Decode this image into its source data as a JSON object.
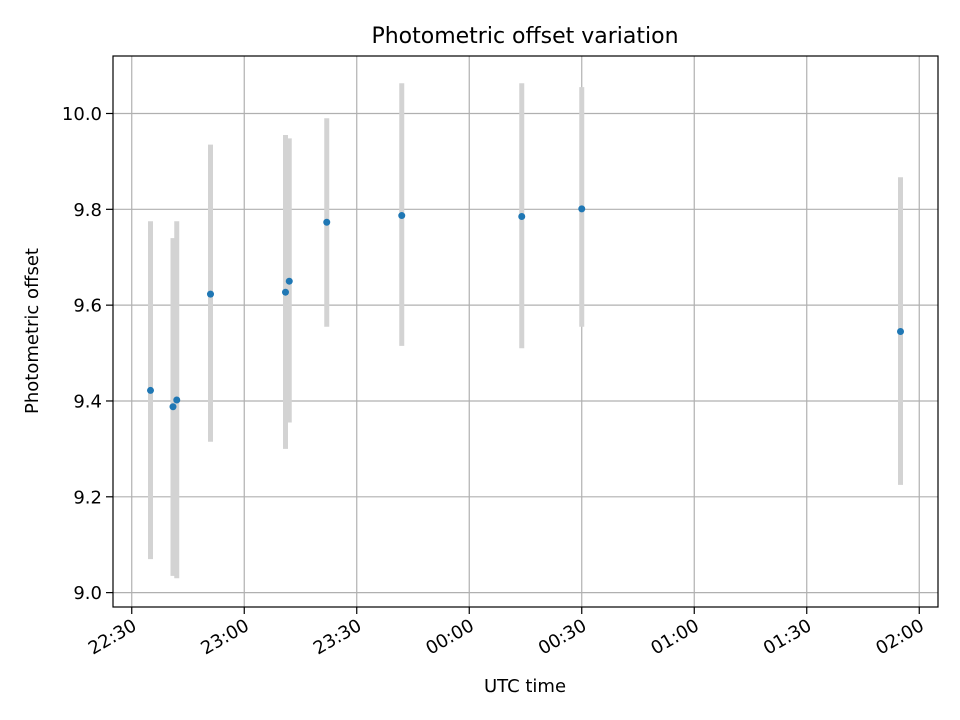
{
  "chart_data": {
    "type": "scatter",
    "title": "Photometric offset variation",
    "xlabel": "UTC time",
    "ylabel": "Photometric offset",
    "xlim": [
      "2000-01-01T22:25",
      "2000-01-02T02:05"
    ],
    "ylim": [
      8.97,
      10.12
    ],
    "x_ticks": [
      "22:30",
      "23:00",
      "23:30",
      "00:00",
      "00:30",
      "01:00",
      "01:30",
      "02:00"
    ],
    "x_tick_times": [
      "2000-01-01T22:30",
      "2000-01-01T23:00",
      "2000-01-01T23:30",
      "2000-01-02T00:00",
      "2000-01-02T00:30",
      "2000-01-02T01:00",
      "2000-01-02T01:30",
      "2000-01-02T02:00"
    ],
    "y_ticks": [
      "9.0",
      "9.2",
      "9.4",
      "9.6",
      "9.8",
      "10.0"
    ],
    "y_tick_values": [
      9.0,
      9.2,
      9.4,
      9.6,
      9.8,
      10.0
    ],
    "grid": true,
    "marker_color": "#1f77b4",
    "errorbar_color": "#d3d3d3",
    "points": [
      {
        "x": "2000-01-01T22:35",
        "y": 9.422,
        "ylow": 9.07,
        "yhigh": 9.775
      },
      {
        "x": "2000-01-01T22:41",
        "y": 9.388,
        "ylow": 9.035,
        "yhigh": 9.74
      },
      {
        "x": "2000-01-01T22:42",
        "y": 9.402,
        "ylow": 9.03,
        "yhigh": 9.775
      },
      {
        "x": "2000-01-01T22:51",
        "y": 9.623,
        "ylow": 9.315,
        "yhigh": 9.935
      },
      {
        "x": "2000-01-01T23:11",
        "y": 9.627,
        "ylow": 9.3,
        "yhigh": 9.955
      },
      {
        "x": "2000-01-01T23:12",
        "y": 9.65,
        "ylow": 9.355,
        "yhigh": 9.948
      },
      {
        "x": "2000-01-01T23:22",
        "y": 9.773,
        "ylow": 9.555,
        "yhigh": 9.99
      },
      {
        "x": "2000-01-01T23:42",
        "y": 9.787,
        "ylow": 9.515,
        "yhigh": 10.063
      },
      {
        "x": "2000-01-02T00:14",
        "y": 9.785,
        "ylow": 9.51,
        "yhigh": 10.063
      },
      {
        "x": "2000-01-02T00:30",
        "y": 9.801,
        "ylow": 9.555,
        "yhigh": 10.055
      },
      {
        "x": "2000-01-02T01:55",
        "y": 9.545,
        "ylow": 9.225,
        "yhigh": 9.867
      }
    ]
  }
}
